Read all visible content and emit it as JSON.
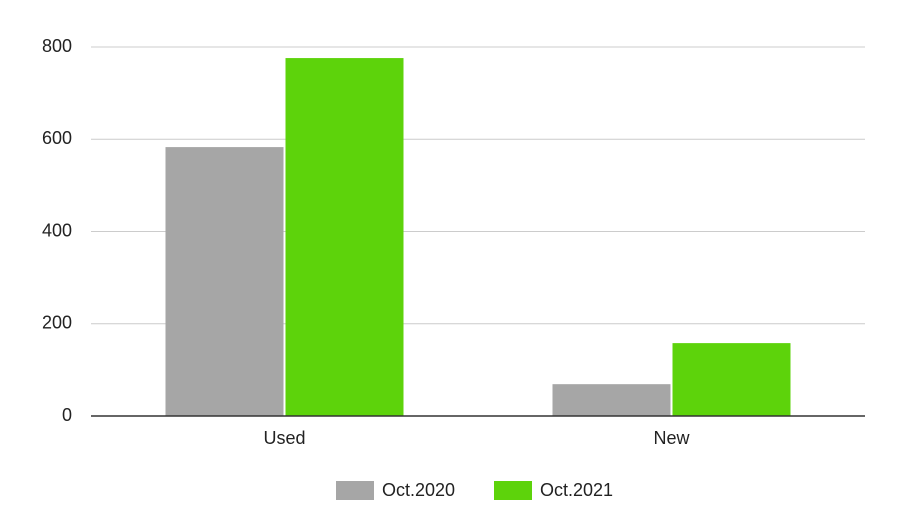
{
  "chart_data": {
    "type": "bar",
    "categories": [
      "Used",
      "New"
    ],
    "series": [
      {
        "name": "Oct.2020",
        "color": "#a6a6a6",
        "values": [
          583,
          69
        ]
      },
      {
        "name": "Oct.2021",
        "color": "#5dd30b",
        "values": [
          776,
          158
        ]
      }
    ],
    "ylim": [
      0,
      800
    ],
    "yticks": [
      0,
      200,
      400,
      600,
      800
    ],
    "grid": true,
    "legend": "bottom"
  }
}
